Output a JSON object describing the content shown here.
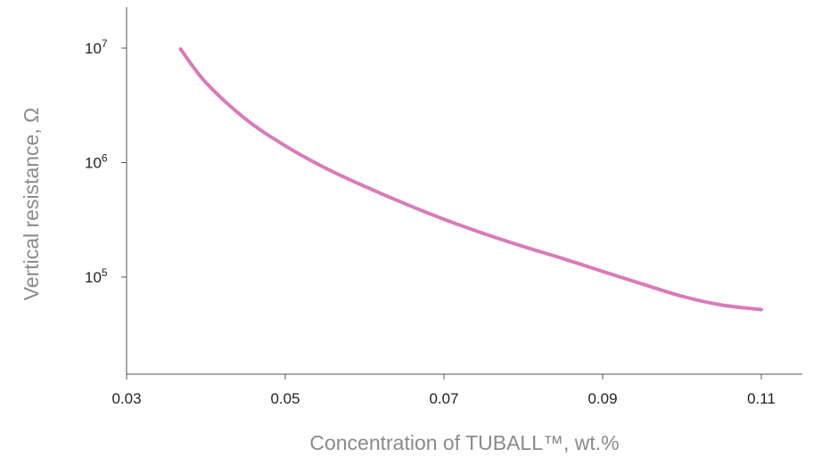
{
  "chart_data": {
    "type": "line",
    "xlabel": "Concentration of TUBALL™, wt.%",
    "ylabel": "Vertical resistance, Ω",
    "yscale": "log",
    "xlim": [
      0.03,
      0.112
    ],
    "ylim": [
      22000,
      25000000
    ],
    "x_ticks": [
      0.03,
      0.05,
      0.07,
      0.09,
      0.11
    ],
    "x_tick_labels": [
      "0.03",
      "0.05",
      "0.07",
      "0.09",
      "0.11"
    ],
    "y_ticks": [
      {
        "value": 10000000,
        "base": "10",
        "exp": "7"
      },
      {
        "value": 1000000,
        "base": "10",
        "exp": "6"
      },
      {
        "value": 100000,
        "base": "10",
        "exp": "5"
      }
    ],
    "grid": false,
    "series": [
      {
        "color": "#d97bb8",
        "x": [
          0.0368,
          0.04,
          0.045,
          0.05,
          0.055,
          0.06,
          0.065,
          0.07,
          0.075,
          0.08,
          0.085,
          0.09,
          0.095,
          0.1,
          0.105,
          0.11
        ],
        "y": [
          9800000,
          5000000,
          2400000,
          1400000,
          900000,
          620000,
          440000,
          320000,
          240000,
          185000,
          145000,
          112000,
          87000,
          68000,
          57000,
          52000
        ]
      }
    ]
  }
}
